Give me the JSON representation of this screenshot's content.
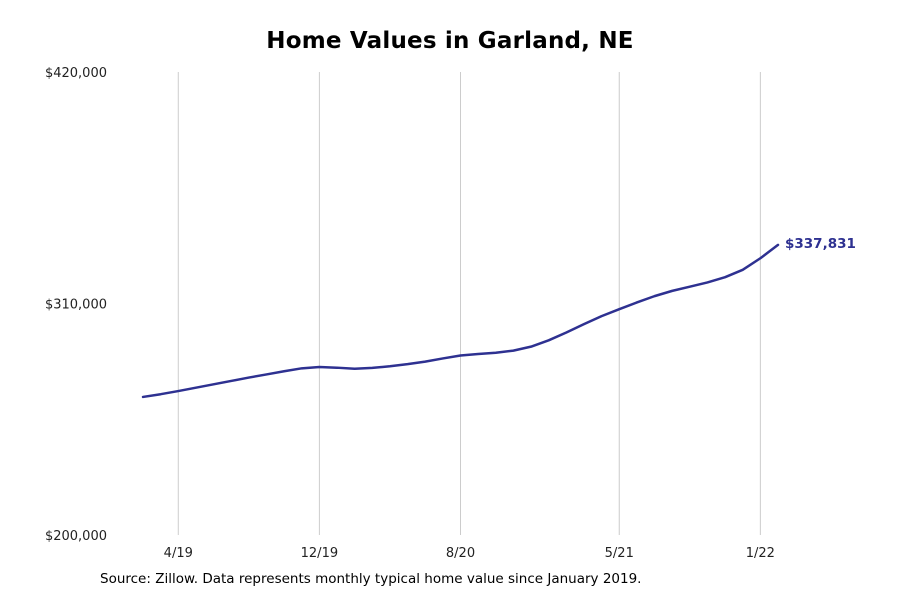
{
  "title": "Home Values in Garland, NE",
  "source_note": "Source: Zillow. Data represents monthly typical home value since January 2019.",
  "chart_data": {
    "type": "line",
    "title": "Home Values in Garland, NE",
    "x": [
      "2/19",
      "3/19",
      "4/19",
      "5/19",
      "6/19",
      "7/19",
      "8/19",
      "9/19",
      "10/19",
      "11/19",
      "12/19",
      "1/20",
      "2/20",
      "3/20",
      "4/20",
      "5/20",
      "6/20",
      "7/20",
      "8/20",
      "9/20",
      "10/20",
      "11/20",
      "12/20",
      "1/21",
      "2/21",
      "3/21",
      "4/21",
      "5/21",
      "6/21",
      "7/21",
      "8/21",
      "9/21",
      "10/21",
      "11/21",
      "12/21",
      "1/22",
      "2/22"
    ],
    "values": [
      265600,
      266900,
      268400,
      270000,
      271600,
      273200,
      274800,
      276300,
      277800,
      279200,
      279800,
      279500,
      279000,
      279400,
      280200,
      281200,
      282400,
      283900,
      285300,
      286000,
      286600,
      287600,
      289500,
      292500,
      296200,
      300200,
      304000,
      307300,
      310500,
      313500,
      316000,
      318000,
      320000,
      322500,
      326000,
      331500,
      337831
    ],
    "ylim": [
      200000,
      420000
    ],
    "yticks": [
      {
        "label": "$420,000",
        "value": 420000
      },
      {
        "label": "$310,000",
        "value": 310000
      },
      {
        "label": "$200,000",
        "value": 200000
      }
    ],
    "xticks": [
      {
        "label": "4/19",
        "index": 2
      },
      {
        "label": "12/19",
        "index": 10
      },
      {
        "label": "8/20",
        "index": 18
      },
      {
        "label": "5/21",
        "index": 27
      },
      {
        "label": "1/22",
        "index": 35
      }
    ],
    "end_label": "$337,831",
    "final_value": 337831,
    "line_color": "#2e3191",
    "grid_color": "#cccccc",
    "grid": "vertical-only",
    "legend": "none",
    "xlabel": "",
    "ylabel": ""
  }
}
